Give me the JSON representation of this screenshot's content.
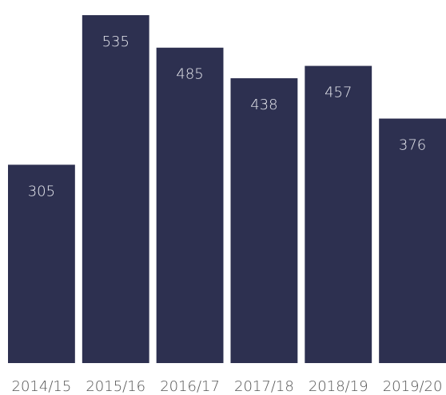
{
  "chart_data": {
    "type": "bar",
    "categories": [
      "2014/15",
      "2015/16",
      "2016/17",
      "2017/18",
      "2018/19",
      "2019/20"
    ],
    "values": [
      305,
      535,
      485,
      438,
      457,
      376
    ],
    "color": "#2d3050"
  }
}
